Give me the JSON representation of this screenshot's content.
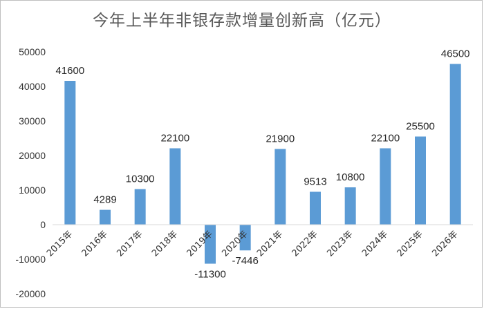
{
  "chart_data": {
    "type": "bar",
    "title": "今年上半年非银存款增量创新高（亿元）",
    "xlabel": "",
    "ylabel": "",
    "categories": [
      "2015年",
      "2016年",
      "2017年",
      "2018年",
      "2019年",
      "2020年",
      "2021年",
      "2022年",
      "2023年",
      "2024年",
      "2025年",
      "2026年"
    ],
    "values": [
      41600,
      4289,
      10300,
      22100,
      -11300,
      -7446,
      21900,
      9513,
      10800,
      22100,
      25500,
      46500
    ],
    "value_labels": [
      "41600",
      "4289",
      "10300",
      "22100",
      "-11300",
      "-7446",
      "21900",
      "9513",
      "10800",
      "22100",
      "25500",
      "46500"
    ],
    "ylim": [
      -20000,
      50000
    ],
    "yticks": [
      -20000,
      -10000,
      0,
      10000,
      20000,
      30000,
      40000,
      50000
    ],
    "ytick_labels": [
      "-20000",
      "-10000",
      "0",
      "10000",
      "20000",
      "30000",
      "40000",
      "50000"
    ],
    "grid": false,
    "legend": "none",
    "bar_color": "#5b9bd5",
    "axis_color": "#d9d9d9"
  }
}
